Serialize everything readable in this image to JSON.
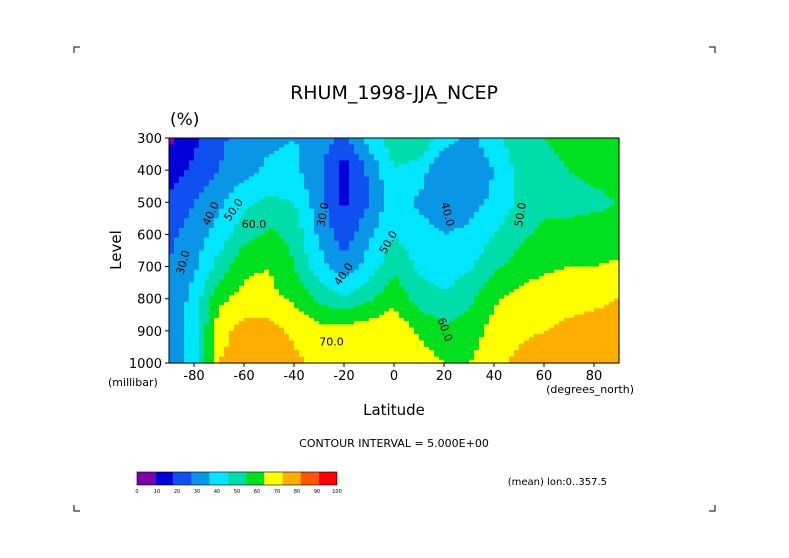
{
  "chart_data": {
    "type": "heatmap",
    "title": "RHUM_1998-JJA_NCEP",
    "units": "(%)",
    "xlabel": "Latitude",
    "ylabel": "Level",
    "x_unit_label": "(degrees_north)",
    "y_unit_label": "(millibar)",
    "xlim": [
      -90,
      90
    ],
    "ylim": [
      1000,
      300
    ],
    "x_ticks": [
      -80,
      -60,
      -40,
      -20,
      0,
      20,
      40,
      60,
      80
    ],
    "x_tick_labels": [
      "-80",
      "-60",
      "-40",
      "-20",
      "0",
      "20",
      "40",
      "60",
      "80"
    ],
    "y_ticks": [
      300,
      400,
      500,
      600,
      700,
      800,
      900,
      1000
    ],
    "y_tick_labels": [
      "300",
      "400",
      "500",
      "600",
      "700",
      "800",
      "900",
      "1000"
    ],
    "contour_interval_text": "CONTOUR INTERVAL = 5.000E+00",
    "mean_text": "(mean) lon:0..357.5",
    "contour_labels": [
      {
        "text": "30.0",
        "lat": -83,
        "lev": 690,
        "rotate": -75
      },
      {
        "text": "40.0",
        "lat": -72,
        "lev": 540,
        "rotate": -65
      },
      {
        "text": "50.0",
        "lat": -63,
        "lev": 530,
        "rotate": -55
      },
      {
        "text": "60.0",
        "lat": -56,
        "lev": 580,
        "rotate": 0
      },
      {
        "text": "30.0",
        "lat": -27,
        "lev": 540,
        "rotate": -80
      },
      {
        "text": "40.0",
        "lat": -19,
        "lev": 730,
        "rotate": -55
      },
      {
        "text": "50.0",
        "lat": -1,
        "lev": 630,
        "rotate": -60
      },
      {
        "text": "70.0",
        "lat": -25,
        "lev": 945,
        "rotate": 0
      },
      {
        "text": "40.0",
        "lat": 20,
        "lev": 540,
        "rotate": 75
      },
      {
        "text": "60.0",
        "lat": 19,
        "lev": 900,
        "rotate": 70
      },
      {
        "text": "50.0",
        "lat": 52,
        "lev": 540,
        "rotate": -80
      }
    ],
    "colorbar": {
      "levels": [
        0,
        10,
        20,
        30,
        40,
        50,
        60,
        70,
        80,
        90,
        100
      ],
      "tick_labels": [
        "0",
        "10",
        "20",
        "30",
        "40",
        "50",
        "60",
        "70",
        "80",
        "90",
        "100"
      ],
      "colors": [
        "#7f00a8",
        "#0000d8",
        "#1050f0",
        "#0a96e6",
        "#00e6ff",
        "#00dcaa",
        "#00e01e",
        "#ffff00",
        "#ffae00",
        "#ff5500",
        "#ff0000"
      ]
    },
    "lats": [
      -90,
      -80,
      -70,
      -60,
      -50,
      -40,
      -30,
      -20,
      -10,
      0,
      10,
      20,
      30,
      40,
      50,
      60,
      70,
      80,
      90
    ],
    "levels_mb": [
      300,
      400,
      500,
      600,
      700,
      800,
      900,
      1000
    ],
    "values": [
      [
        8,
        18,
        28,
        34,
        38,
        40,
        35,
        28,
        44,
        56,
        60,
        44,
        38,
        45,
        58,
        60,
        63,
        66,
        68
      ],
      [
        14,
        22,
        30,
        36,
        42,
        43,
        32,
        15,
        32,
        50,
        45,
        30,
        33,
        40,
        53,
        57,
        60,
        62,
        64
      ],
      [
        22,
        30,
        38,
        48,
        52,
        50,
        34,
        18,
        30,
        46,
        38,
        34,
        36,
        42,
        52,
        58,
        57,
        58,
        60
      ],
      [
        28,
        34,
        44,
        56,
        62,
        57,
        38,
        24,
        38,
        50,
        44,
        40,
        42,
        50,
        58,
        62,
        63,
        64,
        64
      ],
      [
        30,
        38,
        54,
        68,
        70,
        60,
        44,
        34,
        44,
        58,
        48,
        44,
        48,
        58,
        64,
        68,
        70,
        70,
        72
      ],
      [
        30,
        44,
        68,
        73,
        73,
        68,
        58,
        52,
        58,
        67,
        56,
        52,
        58,
        68,
        74,
        76,
        77,
        78,
        80
      ],
      [
        30,
        46,
        76,
        84,
        84,
        78,
        74,
        74,
        76,
        78,
        68,
        62,
        64,
        74,
        78,
        80,
        82,
        84,
        84
      ],
      [
        30,
        46,
        80,
        86,
        88,
        82,
        78,
        76,
        78,
        80,
        76,
        70,
        70,
        78,
        82,
        84,
        86,
        88,
        90
      ]
    ]
  }
}
